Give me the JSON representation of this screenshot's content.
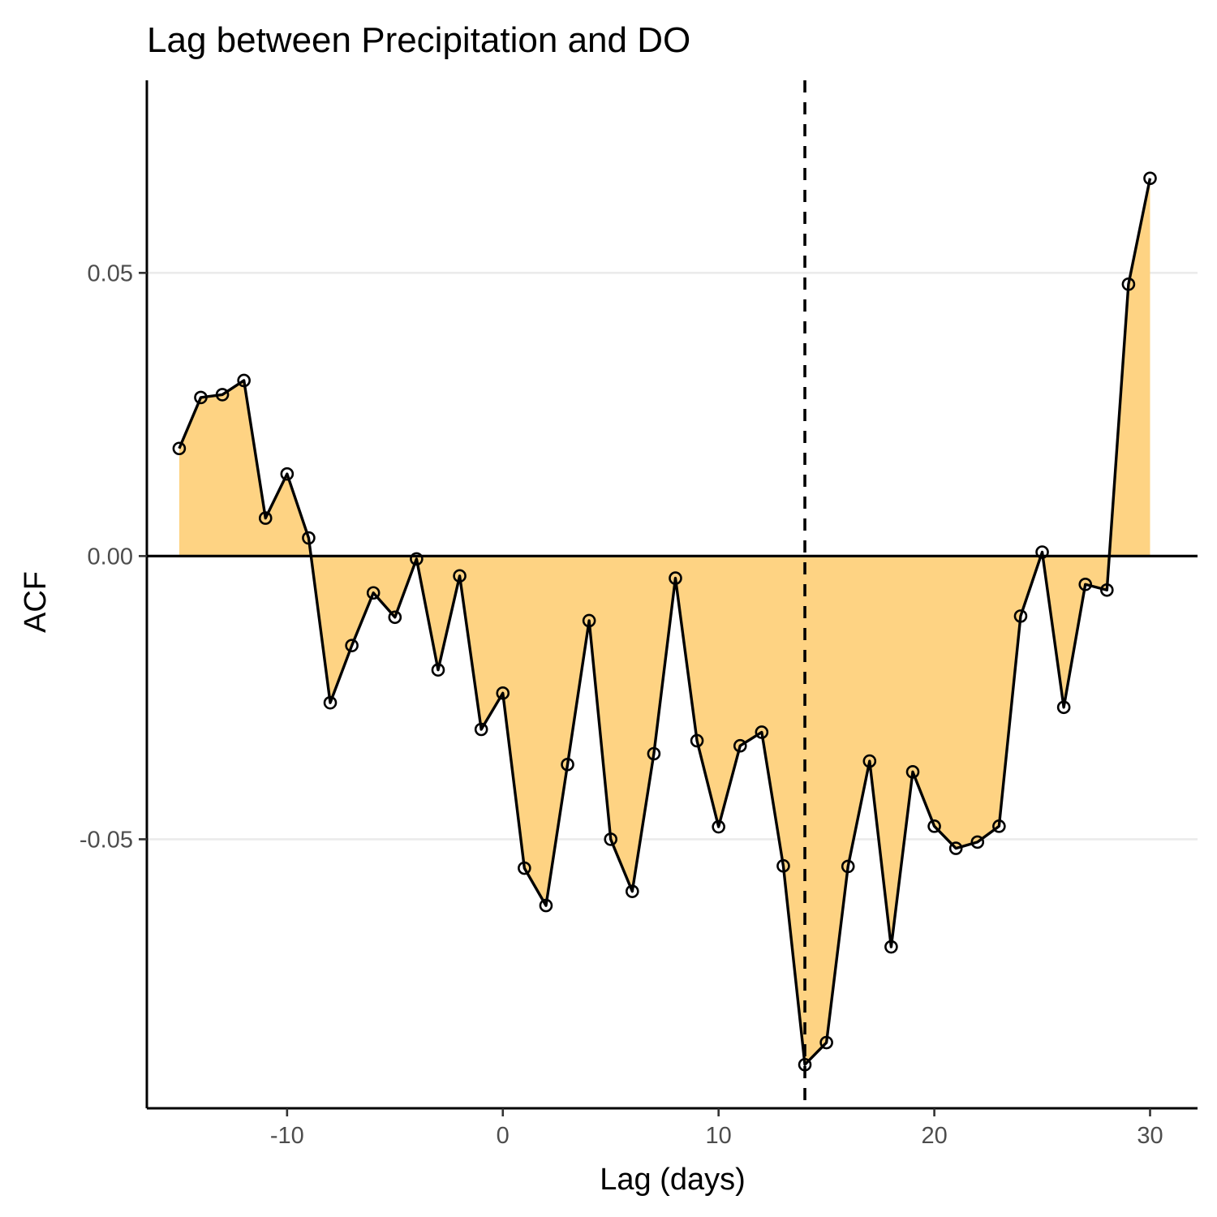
{
  "chart_data": {
    "type": "area",
    "title": "Lag between Precipitation and DO",
    "xlabel": "Lag (days)",
    "ylabel": "ACF",
    "xlim": [
      -16.5,
      32.2
    ],
    "ylim": [
      -0.0975,
      0.084
    ],
    "x_ticks": [
      -10,
      0,
      10,
      20,
      30
    ],
    "x_tick_labels": [
      "-10",
      "0",
      "10",
      "20",
      "30"
    ],
    "y_ticks": [
      -0.05,
      0.0,
      0.05
    ],
    "y_tick_labels": [
      "-0.05",
      "0.00",
      "0.05"
    ],
    "grid": "horizontal major",
    "reference_lines": {
      "hline_y": 0,
      "vline_x": 14
    },
    "series": [
      {
        "x": [
          -15,
          -14,
          -13,
          -12,
          -11,
          -10,
          -9,
          -8,
          -7,
          -6,
          -5,
          -4,
          -3,
          -2,
          -1,
          0,
          1,
          2,
          3,
          4,
          5,
          6,
          7,
          8,
          9,
          10,
          11,
          12,
          13,
          14,
          15,
          16,
          17,
          18,
          19,
          20,
          21,
          22,
          23,
          24,
          25,
          26,
          27,
          28,
          29,
          30
        ],
        "y": [
          0.019,
          0.028,
          0.0285,
          0.031,
          0.0067,
          0.0145,
          0.0032,
          -0.0259,
          -0.0158,
          -0.0065,
          -0.0108,
          -0.0005,
          -0.0201,
          -0.0035,
          -0.0306,
          -0.0242,
          -0.0551,
          -0.0617,
          -0.0368,
          -0.0114,
          -0.05,
          -0.0592,
          -0.0349,
          -0.0039,
          -0.0326,
          -0.0478,
          -0.0335,
          -0.0311,
          -0.0547,
          -0.0898,
          -0.0859,
          -0.0548,
          -0.0362,
          -0.069,
          -0.0381,
          -0.0477,
          -0.0516,
          -0.0505,
          -0.0477,
          -0.0106,
          0.0007,
          -0.0267,
          -0.005,
          -0.006,
          0.048,
          0.0667
        ]
      }
    ],
    "colors": {
      "fill": "#FED383",
      "line": "#000000",
      "grid": "#EBEBEB",
      "tick_text": "#4D4D4D"
    }
  }
}
